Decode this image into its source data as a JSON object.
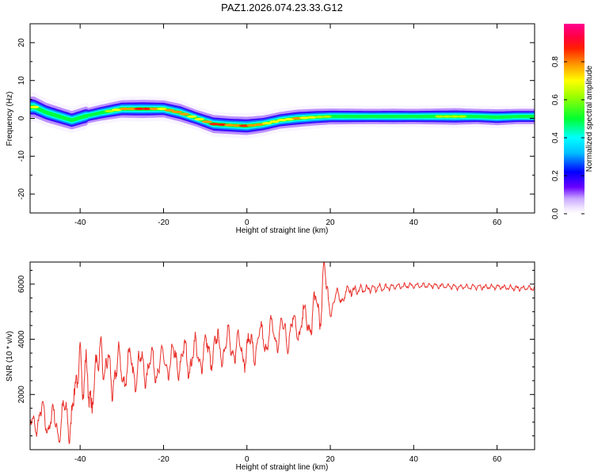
{
  "chart_data": [
    {
      "type": "heatmap",
      "title": "PAZ1.2026.074.23.33.G12",
      "xlabel": "Height of straight line (km)",
      "ylabel": "Frequency (Hz)",
      "xlim": [
        -52,
        69
      ],
      "ylim": [
        -25,
        25
      ],
      "xticks": [
        -40,
        -20,
        0,
        20,
        40,
        60
      ],
      "xtick_labels": [
        "-40",
        "-20",
        "0",
        "20",
        "40",
        "60"
      ],
      "yticks": [
        -20,
        -10,
        0,
        10,
        20
      ],
      "ytick_labels": [
        "-20",
        "-10",
        "0",
        "10",
        "20"
      ],
      "colorbar": {
        "label": "Normalized spectral amplitude",
        "range": [
          0,
          1
        ],
        "ticks": [
          0.0,
          0.2,
          0.4,
          0.6,
          0.8
        ],
        "tick_labels": [
          "0.0",
          "0.2",
          "0.4",
          "0.6",
          "0.8"
        ],
        "colormap": "rainbow (violet-blue-cyan-green-yellow-orange-red-magenta)"
      },
      "ridge": {
        "x": [
          -51,
          -48,
          -45,
          -42,
          -39,
          -35,
          -30,
          -25,
          -20,
          -16,
          -12,
          -8,
          -4,
          0,
          4,
          8,
          12,
          16,
          20,
          25,
          30,
          35,
          40,
          45,
          50,
          55,
          60,
          65,
          69
        ],
        "frequency": [
          3,
          1.5,
          0.5,
          -0.5,
          0.5,
          1.5,
          2.5,
          2.5,
          2.5,
          1.5,
          0,
          -1.5,
          -1.8,
          -2,
          -1.5,
          -0.5,
          0,
          0.3,
          0.5,
          0.5,
          0.5,
          0.5,
          0.5,
          0.5,
          0.5,
          0.5,
          0.3,
          0.5,
          0.5
        ],
        "intensity": [
          0.7,
          0.55,
          0.5,
          0.45,
          0.5,
          0.6,
          0.8,
          0.9,
          0.75,
          0.85,
          0.7,
          0.9,
          0.85,
          0.9,
          0.75,
          0.7,
          0.8,
          0.7,
          0.6,
          0.55,
          0.5,
          0.55,
          0.5,
          0.6,
          0.7,
          0.5,
          0.6,
          0.5,
          0.5
        ]
      }
    },
    {
      "type": "line",
      "xlabel": "Height of straight line (km)",
      "ylabel": "SNR (10 * v/v)",
      "xlim": [
        -52,
        69
      ],
      "ylim": [
        0,
        6800
      ],
      "xticks": [
        -40,
        -20,
        0,
        20,
        40,
        60
      ],
      "xtick_labels": [
        "-40",
        "-20",
        "0",
        "20",
        "40",
        "60"
      ],
      "yticks": [
        2000,
        4000,
        6000
      ],
      "ytick_labels": [
        "2000",
        "4000",
        "6000"
      ],
      "series": [
        {
          "name": "SNR",
          "color": "#e8302a",
          "envelope_x": [
            -52,
            -50,
            -45,
            -42,
            -40,
            -35,
            -30,
            -25,
            -20,
            -15,
            -10,
            -5,
            0,
            5,
            10,
            15,
            18,
            20,
            22,
            25,
            30,
            35,
            40,
            45,
            50,
            55,
            60,
            65,
            69
          ],
          "envelope_y": [
            700,
            1200,
            900,
            1400,
            2000,
            2600,
            2900,
            3000,
            3100,
            3300,
            3500,
            3800,
            3600,
            4100,
            4300,
            4700,
            5300,
            5300,
            5500,
            5750,
            5850,
            5900,
            5950,
            5950,
            5900,
            5900,
            5900,
            5850,
            5850
          ],
          "oscillation_amplitude": [
            500,
            600,
            700,
            1100,
            1300,
            1100,
            900,
            700,
            700,
            750,
            750,
            750,
            700,
            700,
            700,
            750,
            1000,
            500,
            300,
            200,
            150,
            120,
            100,
            100,
            100,
            100,
            100,
            100,
            100
          ],
          "peaks": [
            {
              "x": -40,
              "y": 3900
            },
            {
              "x": -35,
              "y": 4100
            },
            {
              "x": 18.5,
              "y": 6800
            }
          ]
        }
      ]
    }
  ]
}
